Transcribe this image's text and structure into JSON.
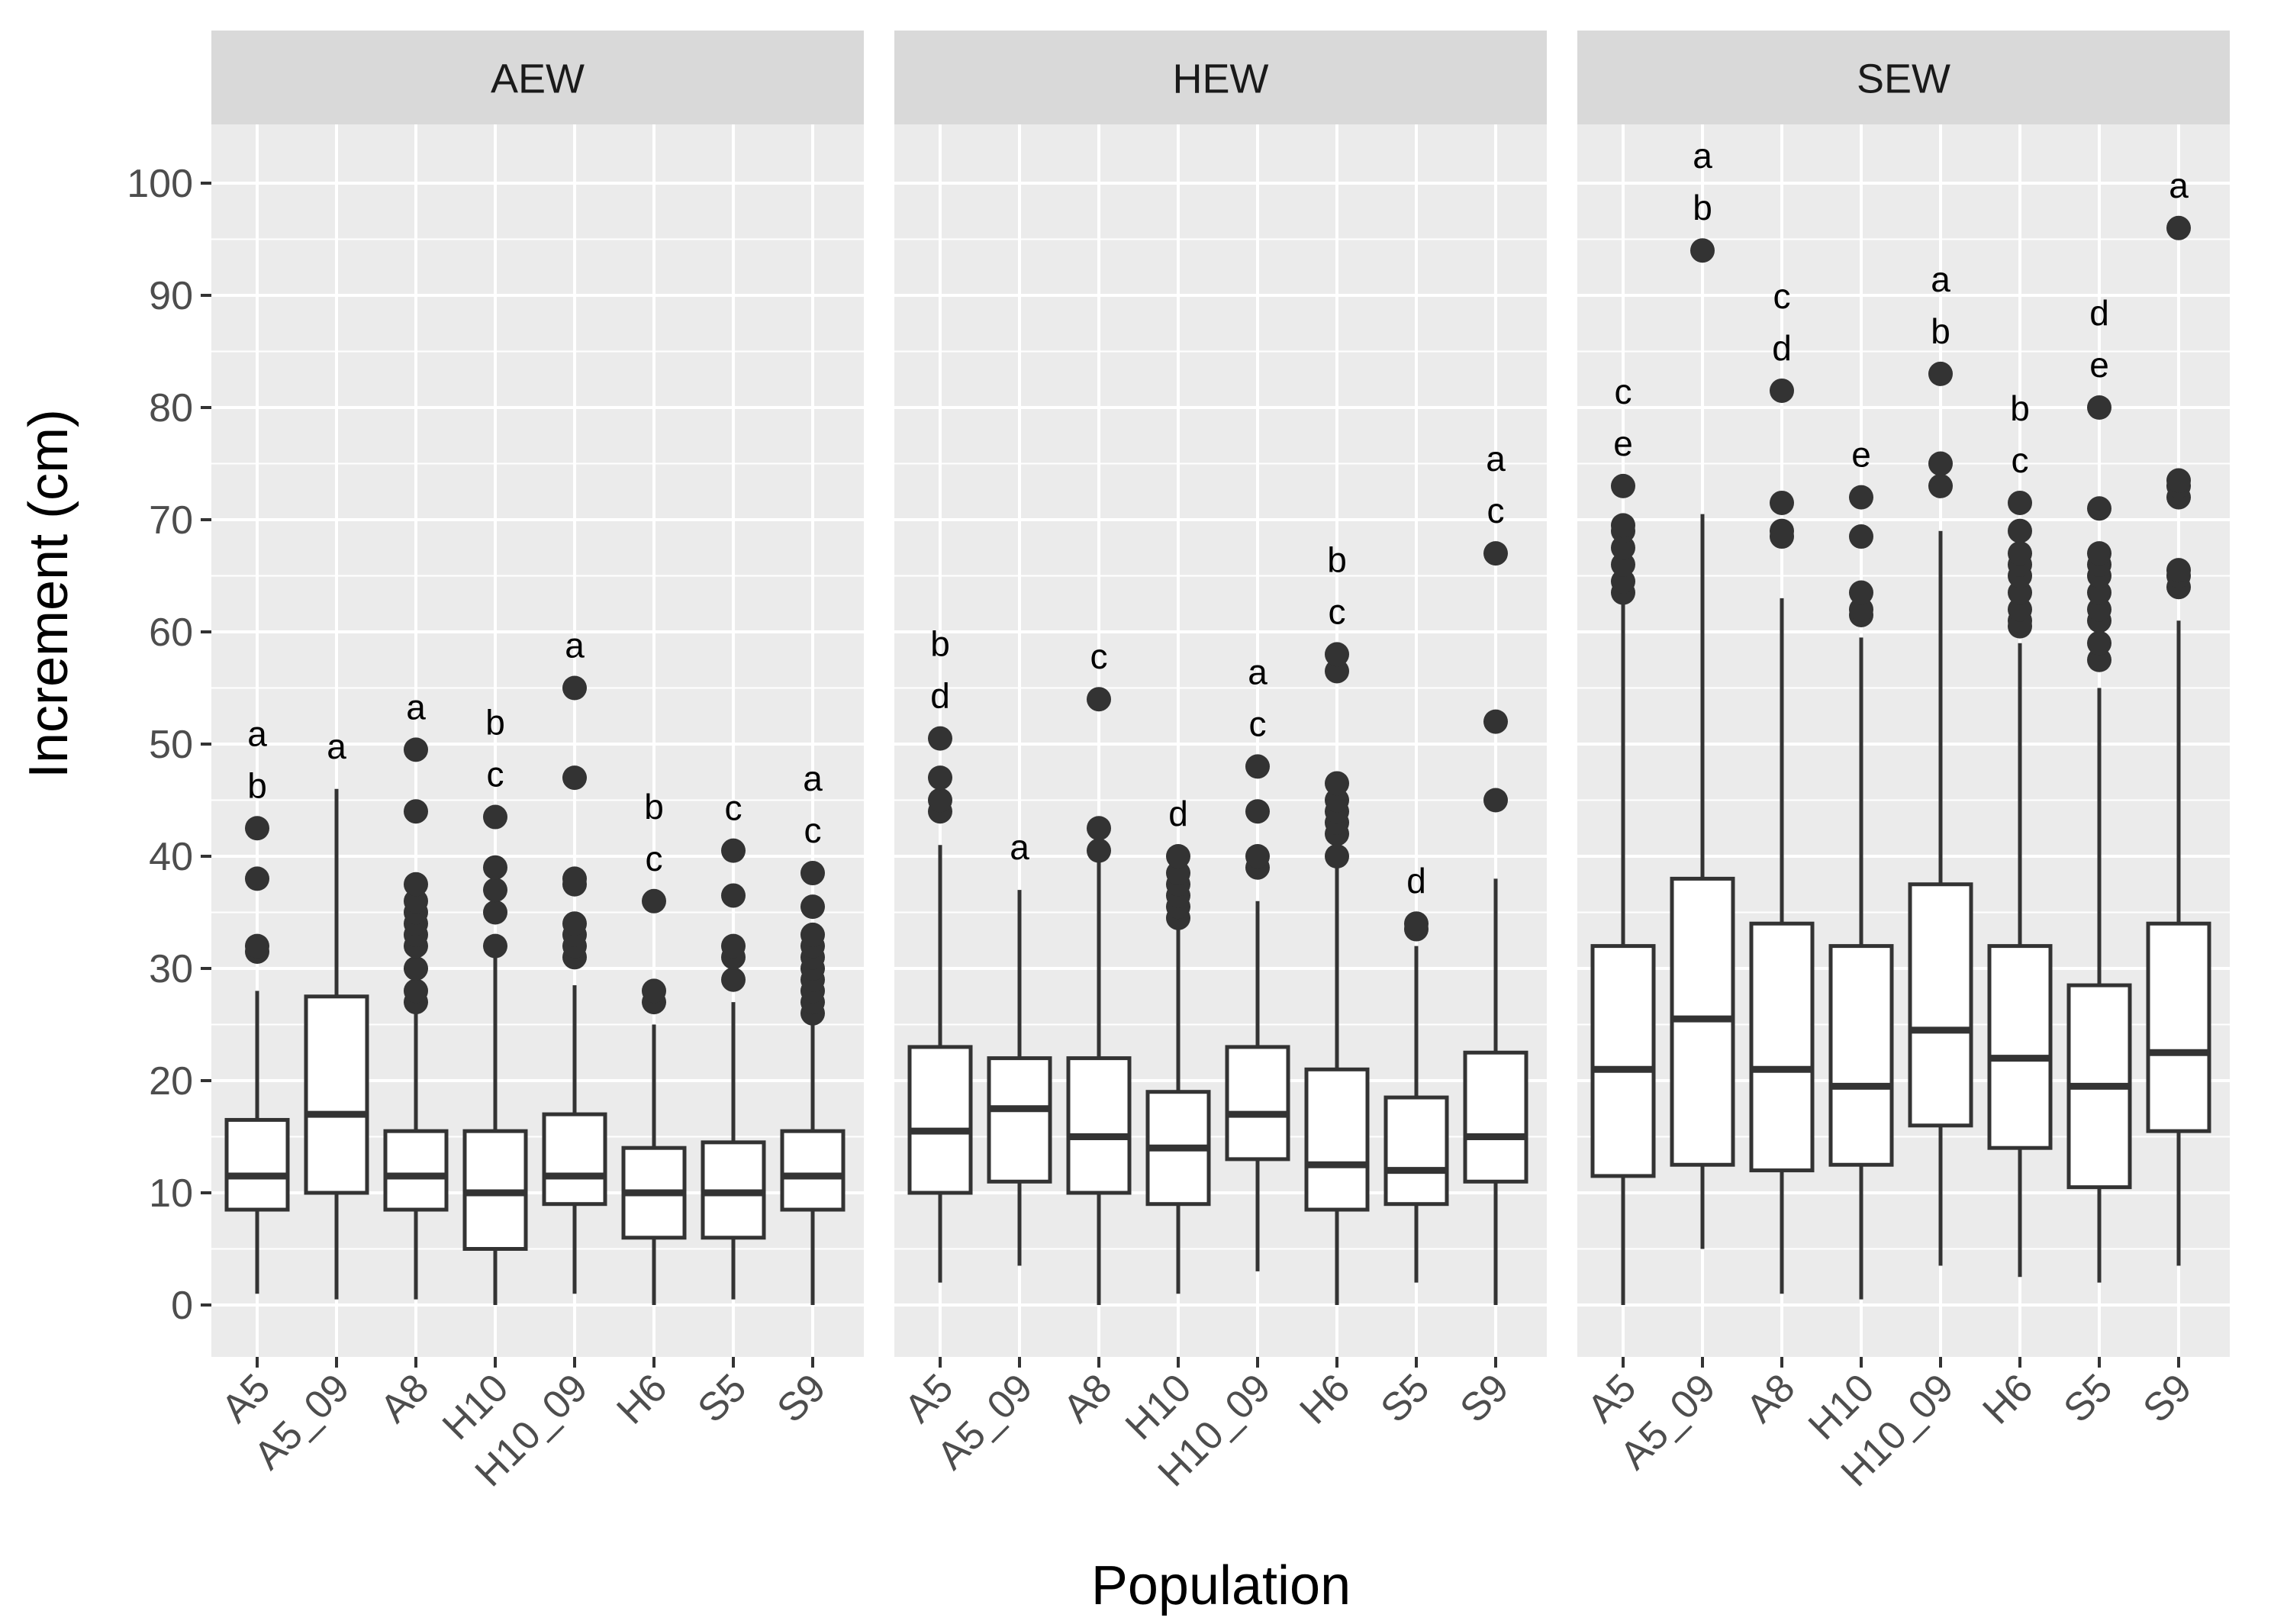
{
  "chart_data": {
    "type": "boxplot",
    "xlabel": "Population",
    "ylabel": "Increment (cm)",
    "ylim": [
      -5,
      105
    ],
    "yticks": [
      0,
      10,
      20,
      30,
      40,
      50,
      60,
      70,
      80,
      90,
      100
    ],
    "categories": [
      "A5",
      "A5_09",
      "A8",
      "H10",
      "H10_09",
      "H6",
      "S5",
      "S9"
    ],
    "panels": [
      {
        "name": "AEW",
        "boxes": [
          {
            "category": "A5",
            "q1": 8.5,
            "median": 11.5,
            "q3": 16.5,
            "whisker_low": 1,
            "whisker_high": 28,
            "outliers": [
              31.5,
              32,
              38,
              42.5
            ],
            "letters": [
              "a",
              "b"
            ]
          },
          {
            "category": "A5_09",
            "q1": 10,
            "median": 17,
            "q3": 27.5,
            "whisker_low": 0.5,
            "whisker_high": 46,
            "outliers": [],
            "letters": [
              "a"
            ]
          },
          {
            "category": "A8",
            "q1": 8.5,
            "median": 11.5,
            "q3": 15.5,
            "whisker_low": 0.5,
            "whisker_high": 26.5,
            "outliers": [
              27,
              28,
              30,
              32,
              33,
              34,
              35,
              36,
              37.5,
              44,
              49.5
            ],
            "letters": [
              "a"
            ]
          },
          {
            "category": "H10",
            "q1": 5,
            "median": 10,
            "q3": 15.5,
            "whisker_low": 0,
            "whisker_high": 31.5,
            "outliers": [
              32,
              35,
              37,
              39,
              43.5
            ],
            "letters": [
              "b",
              "c"
            ]
          },
          {
            "category": "H10_09",
            "q1": 9,
            "median": 11.5,
            "q3": 17,
            "whisker_low": 1,
            "whisker_high": 28.5,
            "outliers": [
              31,
              32,
              33,
              34,
              37.5,
              38,
              47,
              55
            ],
            "letters": [
              "a"
            ]
          },
          {
            "category": "H6",
            "q1": 6,
            "median": 10,
            "q3": 14,
            "whisker_low": 0,
            "whisker_high": 25,
            "outliers": [
              27,
              28,
              36
            ],
            "letters": [
              "b",
              "c"
            ]
          },
          {
            "category": "S5",
            "q1": 6,
            "median": 10,
            "q3": 14.5,
            "whisker_low": 0.5,
            "whisker_high": 27,
            "outliers": [
              29,
              31,
              32,
              36.5,
              40.5
            ],
            "letters": [
              "c"
            ]
          },
          {
            "category": "S9",
            "q1": 8.5,
            "median": 11.5,
            "q3": 15.5,
            "whisker_low": 0,
            "whisker_high": 25.5,
            "outliers": [
              26,
              27,
              28,
              29,
              30,
              31,
              32,
              33,
              35.5,
              38.5
            ],
            "letters": [
              "a",
              "c"
            ]
          }
        ]
      },
      {
        "name": "HEW",
        "boxes": [
          {
            "category": "A5",
            "q1": 10,
            "median": 15.5,
            "q3": 23,
            "whisker_low": 2,
            "whisker_high": 41,
            "outliers": [
              44,
              45,
              47,
              50.5
            ],
            "letters": [
              "b",
              "d"
            ]
          },
          {
            "category": "A5_09",
            "q1": 11,
            "median": 17.5,
            "q3": 22,
            "whisker_low": 3.5,
            "whisker_high": 37,
            "outliers": [],
            "letters": [
              "a"
            ]
          },
          {
            "category": "A8",
            "q1": 10,
            "median": 15,
            "q3": 22,
            "whisker_low": 0,
            "whisker_high": 40,
            "outliers": [
              40.5,
              42.5,
              54
            ],
            "letters": [
              "c"
            ]
          },
          {
            "category": "H10",
            "q1": 9,
            "median": 14,
            "q3": 19,
            "whisker_low": 1,
            "whisker_high": 34,
            "outliers": [
              34.5,
              35.5,
              36.5,
              37.5,
              38.5,
              40
            ],
            "letters": [
              "d"
            ]
          },
          {
            "category": "H10_09",
            "q1": 13,
            "median": 17,
            "q3": 23,
            "whisker_low": 3,
            "whisker_high": 36,
            "outliers": [
              39,
              40,
              44,
              48
            ],
            "letters": [
              "a",
              "c"
            ]
          },
          {
            "category": "H6",
            "q1": 8.5,
            "median": 12.5,
            "q3": 21,
            "whisker_low": 0,
            "whisker_high": 39.5,
            "outliers": [
              40,
              42,
              43,
              44,
              45,
              46.5,
              56.5,
              58
            ],
            "letters": [
              "b",
              "c"
            ]
          },
          {
            "category": "S5",
            "q1": 9,
            "median": 12,
            "q3": 18.5,
            "whisker_low": 2,
            "whisker_high": 32,
            "outliers": [
              33.5,
              34
            ],
            "letters": [
              "d"
            ]
          },
          {
            "category": "S9",
            "q1": 11,
            "median": 15,
            "q3": 22.5,
            "whisker_low": 0,
            "whisker_high": 38,
            "outliers": [
              45,
              52,
              67
            ],
            "letters": [
              "a",
              "c"
            ]
          }
        ]
      },
      {
        "name": "SEW",
        "boxes": [
          {
            "category": "A5",
            "q1": 11.5,
            "median": 21,
            "q3": 32,
            "whisker_low": 0,
            "whisker_high": 63,
            "outliers": [
              63.5,
              64.5,
              66,
              67.5,
              69,
              69.5,
              73
            ],
            "letters": [
              "c",
              "e"
            ]
          },
          {
            "category": "A5_09",
            "q1": 12.5,
            "median": 25.5,
            "q3": 38,
            "whisker_low": 5,
            "whisker_high": 70.5,
            "outliers": [
              94
            ],
            "letters": [
              "a",
              "b"
            ]
          },
          {
            "category": "A8",
            "q1": 12,
            "median": 21,
            "q3": 34,
            "whisker_low": 1,
            "whisker_high": 63,
            "outliers": [
              68.5,
              69,
              71.5,
              81.5
            ],
            "letters": [
              "c",
              "d"
            ]
          },
          {
            "category": "H10",
            "q1": 12.5,
            "median": 19.5,
            "q3": 32,
            "whisker_low": 0.5,
            "whisker_high": 59.5,
            "outliers": [
              61.5,
              62,
              63.5,
              68.5,
              72
            ],
            "letters": [
              "e"
            ]
          },
          {
            "category": "H10_09",
            "q1": 16,
            "median": 24.5,
            "q3": 37.5,
            "whisker_low": 3.5,
            "whisker_high": 69,
            "outliers": [
              73,
              75,
              83
            ],
            "letters": [
              "a",
              "b"
            ]
          },
          {
            "category": "H6",
            "q1": 14,
            "median": 22,
            "q3": 32,
            "whisker_low": 2.5,
            "whisker_high": 59,
            "outliers": [
              60.5,
              61,
              62,
              63.5,
              65,
              66,
              67,
              69,
              71.5
            ],
            "letters": [
              "b",
              "c"
            ]
          },
          {
            "category": "S5",
            "q1": 10.5,
            "median": 19.5,
            "q3": 28.5,
            "whisker_low": 2,
            "whisker_high": 55,
            "outliers": [
              57.5,
              59,
              61,
              62,
              63.5,
              65,
              66,
              67,
              71,
              80
            ],
            "letters": [
              "d",
              "e"
            ]
          },
          {
            "category": "S9",
            "q1": 15.5,
            "median": 22.5,
            "q3": 34,
            "whisker_low": 3.5,
            "whisker_high": 61,
            "outliers": [
              64,
              65,
              65.5,
              72,
              73,
              73.5,
              96
            ],
            "letters": [
              "a"
            ]
          }
        ]
      }
    ]
  }
}
